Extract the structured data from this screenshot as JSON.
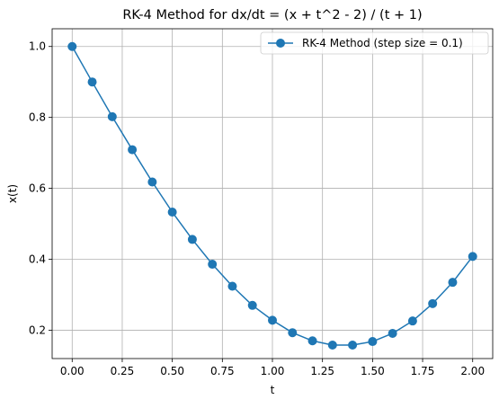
{
  "chart_data": {
    "type": "line",
    "title": "RK-4 Method for dx/dt = (x + t^2 - 2) / (t + 1)",
    "xlabel": "t",
    "ylabel": "x(t)",
    "xlim": [
      -0.1,
      2.1
    ],
    "ylim": [
      0.12,
      1.05
    ],
    "xticks": [
      0.0,
      0.25,
      0.5,
      0.75,
      1.0,
      1.25,
      1.5,
      1.75,
      2.0
    ],
    "xtick_labels": [
      "0.00",
      "0.25",
      "0.50",
      "0.75",
      "1.00",
      "1.25",
      "1.50",
      "1.75",
      "2.00"
    ],
    "yticks": [
      0.2,
      0.4,
      0.6,
      0.8,
      1.0
    ],
    "ytick_labels": [
      "0.2",
      "0.4",
      "0.6",
      "0.8",
      "1.0"
    ],
    "grid": true,
    "legend_position": "top-right",
    "series": [
      {
        "name": "RK-4 Method (step size = 0.1)",
        "color": "#1f77b4",
        "marker": "circle",
        "x": [
          0.0,
          0.1,
          0.2,
          0.3,
          0.4,
          0.5,
          0.6,
          0.7,
          0.8,
          0.9,
          1.0,
          1.1,
          1.2,
          1.3,
          1.4,
          1.5,
          1.6,
          1.7,
          1.8,
          1.9,
          2.0
        ],
        "y": [
          1.0,
          0.9,
          0.802,
          0.709,
          0.618,
          0.533,
          0.456,
          0.386,
          0.324,
          0.27,
          0.228,
          0.193,
          0.17,
          0.158,
          0.158,
          0.168,
          0.191,
          0.226,
          0.275,
          0.335,
          0.408
        ]
      }
    ]
  }
}
